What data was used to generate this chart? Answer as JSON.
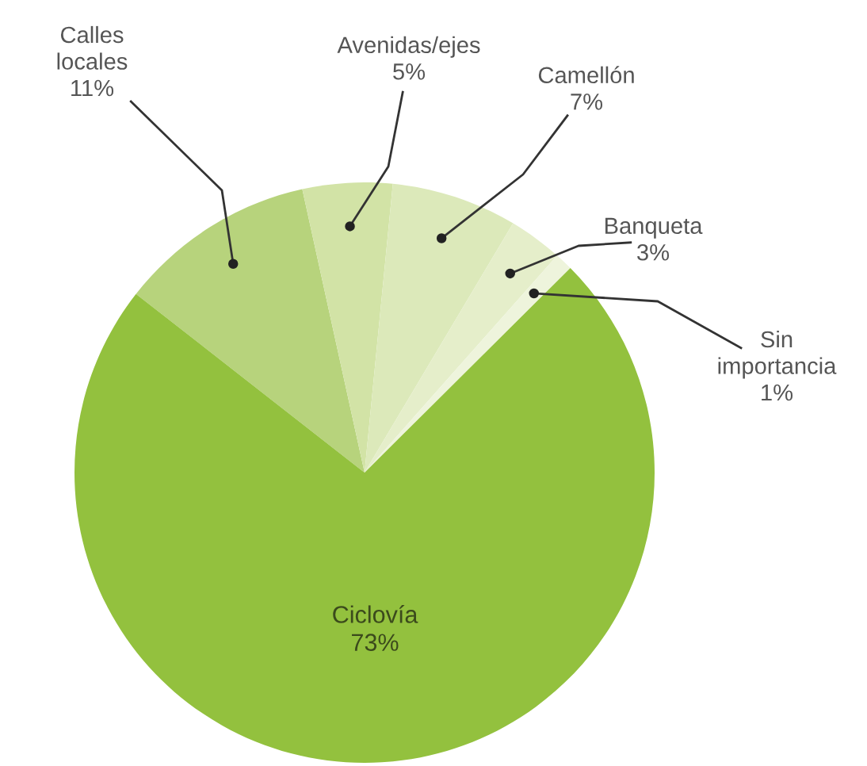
{
  "chart_data": {
    "type": "pie",
    "categories": [
      "Calles\nlocales",
      "Avenidas/ejes",
      "Camellón",
      "Banqueta",
      "Sin\nimportancia",
      "Ciclovía"
    ],
    "values": [
      11,
      5,
      7,
      3,
      1,
      73
    ],
    "value_labels": [
      "11%",
      "5%",
      "7%",
      "3%",
      "1%",
      "73%"
    ],
    "colors": [
      "#b7d37c",
      "#d2e3a6",
      "#dce9ba",
      "#e5eeca",
      "#eef4dc",
      "#93c13e"
    ],
    "legend": false
  }
}
